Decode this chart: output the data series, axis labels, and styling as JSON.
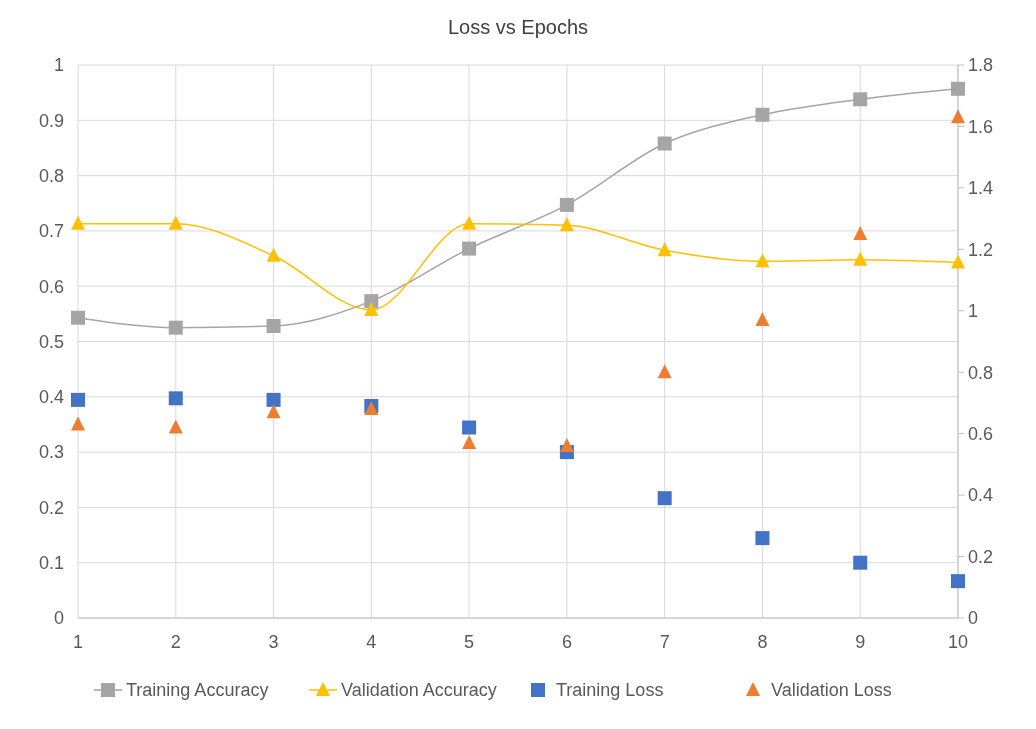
{
  "chart_data": {
    "type": "line",
    "title": "Loss vs Epochs",
    "x": [
      1,
      2,
      3,
      4,
      5,
      6,
      7,
      8,
      9,
      10
    ],
    "xlim": [
      1,
      10
    ],
    "xticks": [
      1,
      2,
      3,
      4,
      5,
      6,
      7,
      8,
      9,
      10
    ],
    "ylim": [
      0,
      1
    ],
    "yticks": [
      0,
      0.1,
      0.2,
      0.3,
      0.4,
      0.5,
      0.6,
      0.7,
      0.8,
      0.9,
      1
    ],
    "y2lim": [
      0,
      1.8
    ],
    "y2ticks": [
      0,
      0.2,
      0.4,
      0.6,
      0.8,
      1,
      1.2,
      1.4,
      1.6,
      1.8
    ],
    "grid": true,
    "legend": "bottom",
    "series": [
      {
        "name": "Training Accuracy",
        "marker": "square",
        "color": "#a5a5a5",
        "values": [
          0.543,
          0.525,
          0.528,
          0.573,
          0.668,
          0.747,
          0.858,
          0.91,
          0.938,
          0.957
        ]
      },
      {
        "name": "Validation Accuracy",
        "marker": "triangle",
        "color": "#ffc000",
        "values": [
          0.713,
          0.713,
          0.655,
          0.557,
          0.713,
          0.71,
          0.665,
          0.645,
          0.648,
          0.643
        ]
      },
      {
        "name": "Training Loss",
        "type": "scatter",
        "marker": "square",
        "axis": "y2",
        "color": "#4472c4",
        "values": [
          0.71,
          0.715,
          0.71,
          0.69,
          0.62,
          0.54,
          0.39,
          0.26,
          0.18,
          0.12
        ]
      },
      {
        "name": "Validation Loss",
        "type": "scatter",
        "marker": "triangle",
        "axis": "y2",
        "color": "#ed7d31",
        "values": [
          0.63,
          0.62,
          0.67,
          0.68,
          0.57,
          0.56,
          0.8,
          0.97,
          1.25,
          1.63
        ]
      }
    ]
  }
}
